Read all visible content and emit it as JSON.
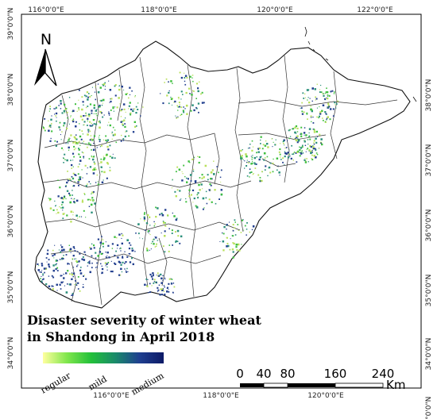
{
  "map": {
    "title_line1": "Disaster severity of winter wheat",
    "title_line2": "in Shandong in April 2018",
    "north_label": "N",
    "longitude_ticks": [
      "116°0'0\"E",
      "118°0'0\"E",
      "120°0'0\"E",
      "122°0'0\"E"
    ],
    "latitude_ticks_left": [
      "39°0'0\"N",
      "38°0'0\"N",
      "37°0'0\"N",
      "36°0'0\"N",
      "35°0'0\"N",
      "34°0'0\"N"
    ],
    "latitude_ticks_right": [
      "38°0'0\"N",
      "37°0'0\"N",
      "36°0'0\"N",
      "35°0'0\"N",
      "34°0'0\"N",
      "33°0'0\"N"
    ],
    "legend": {
      "labels": [
        "regular",
        "mild",
        "medium"
      ],
      "colors": [
        "#ffff9e",
        "#7fe64c",
        "#22c03a",
        "#1a8a6a",
        "#1f3f90",
        "#0d1a66"
      ]
    },
    "scale_bar": {
      "ticks": [
        "0",
        "40",
        "80",
        "160",
        "240"
      ],
      "unit": "Km"
    },
    "colors": {
      "province_fill": "#ffffff",
      "boundary": "#222222",
      "speckle_green": "#3fbf3f",
      "speckle_yellowgreen": "#b8e05a",
      "speckle_teal": "#2a8f7a",
      "speckle_blue": "#23408f"
    }
  }
}
